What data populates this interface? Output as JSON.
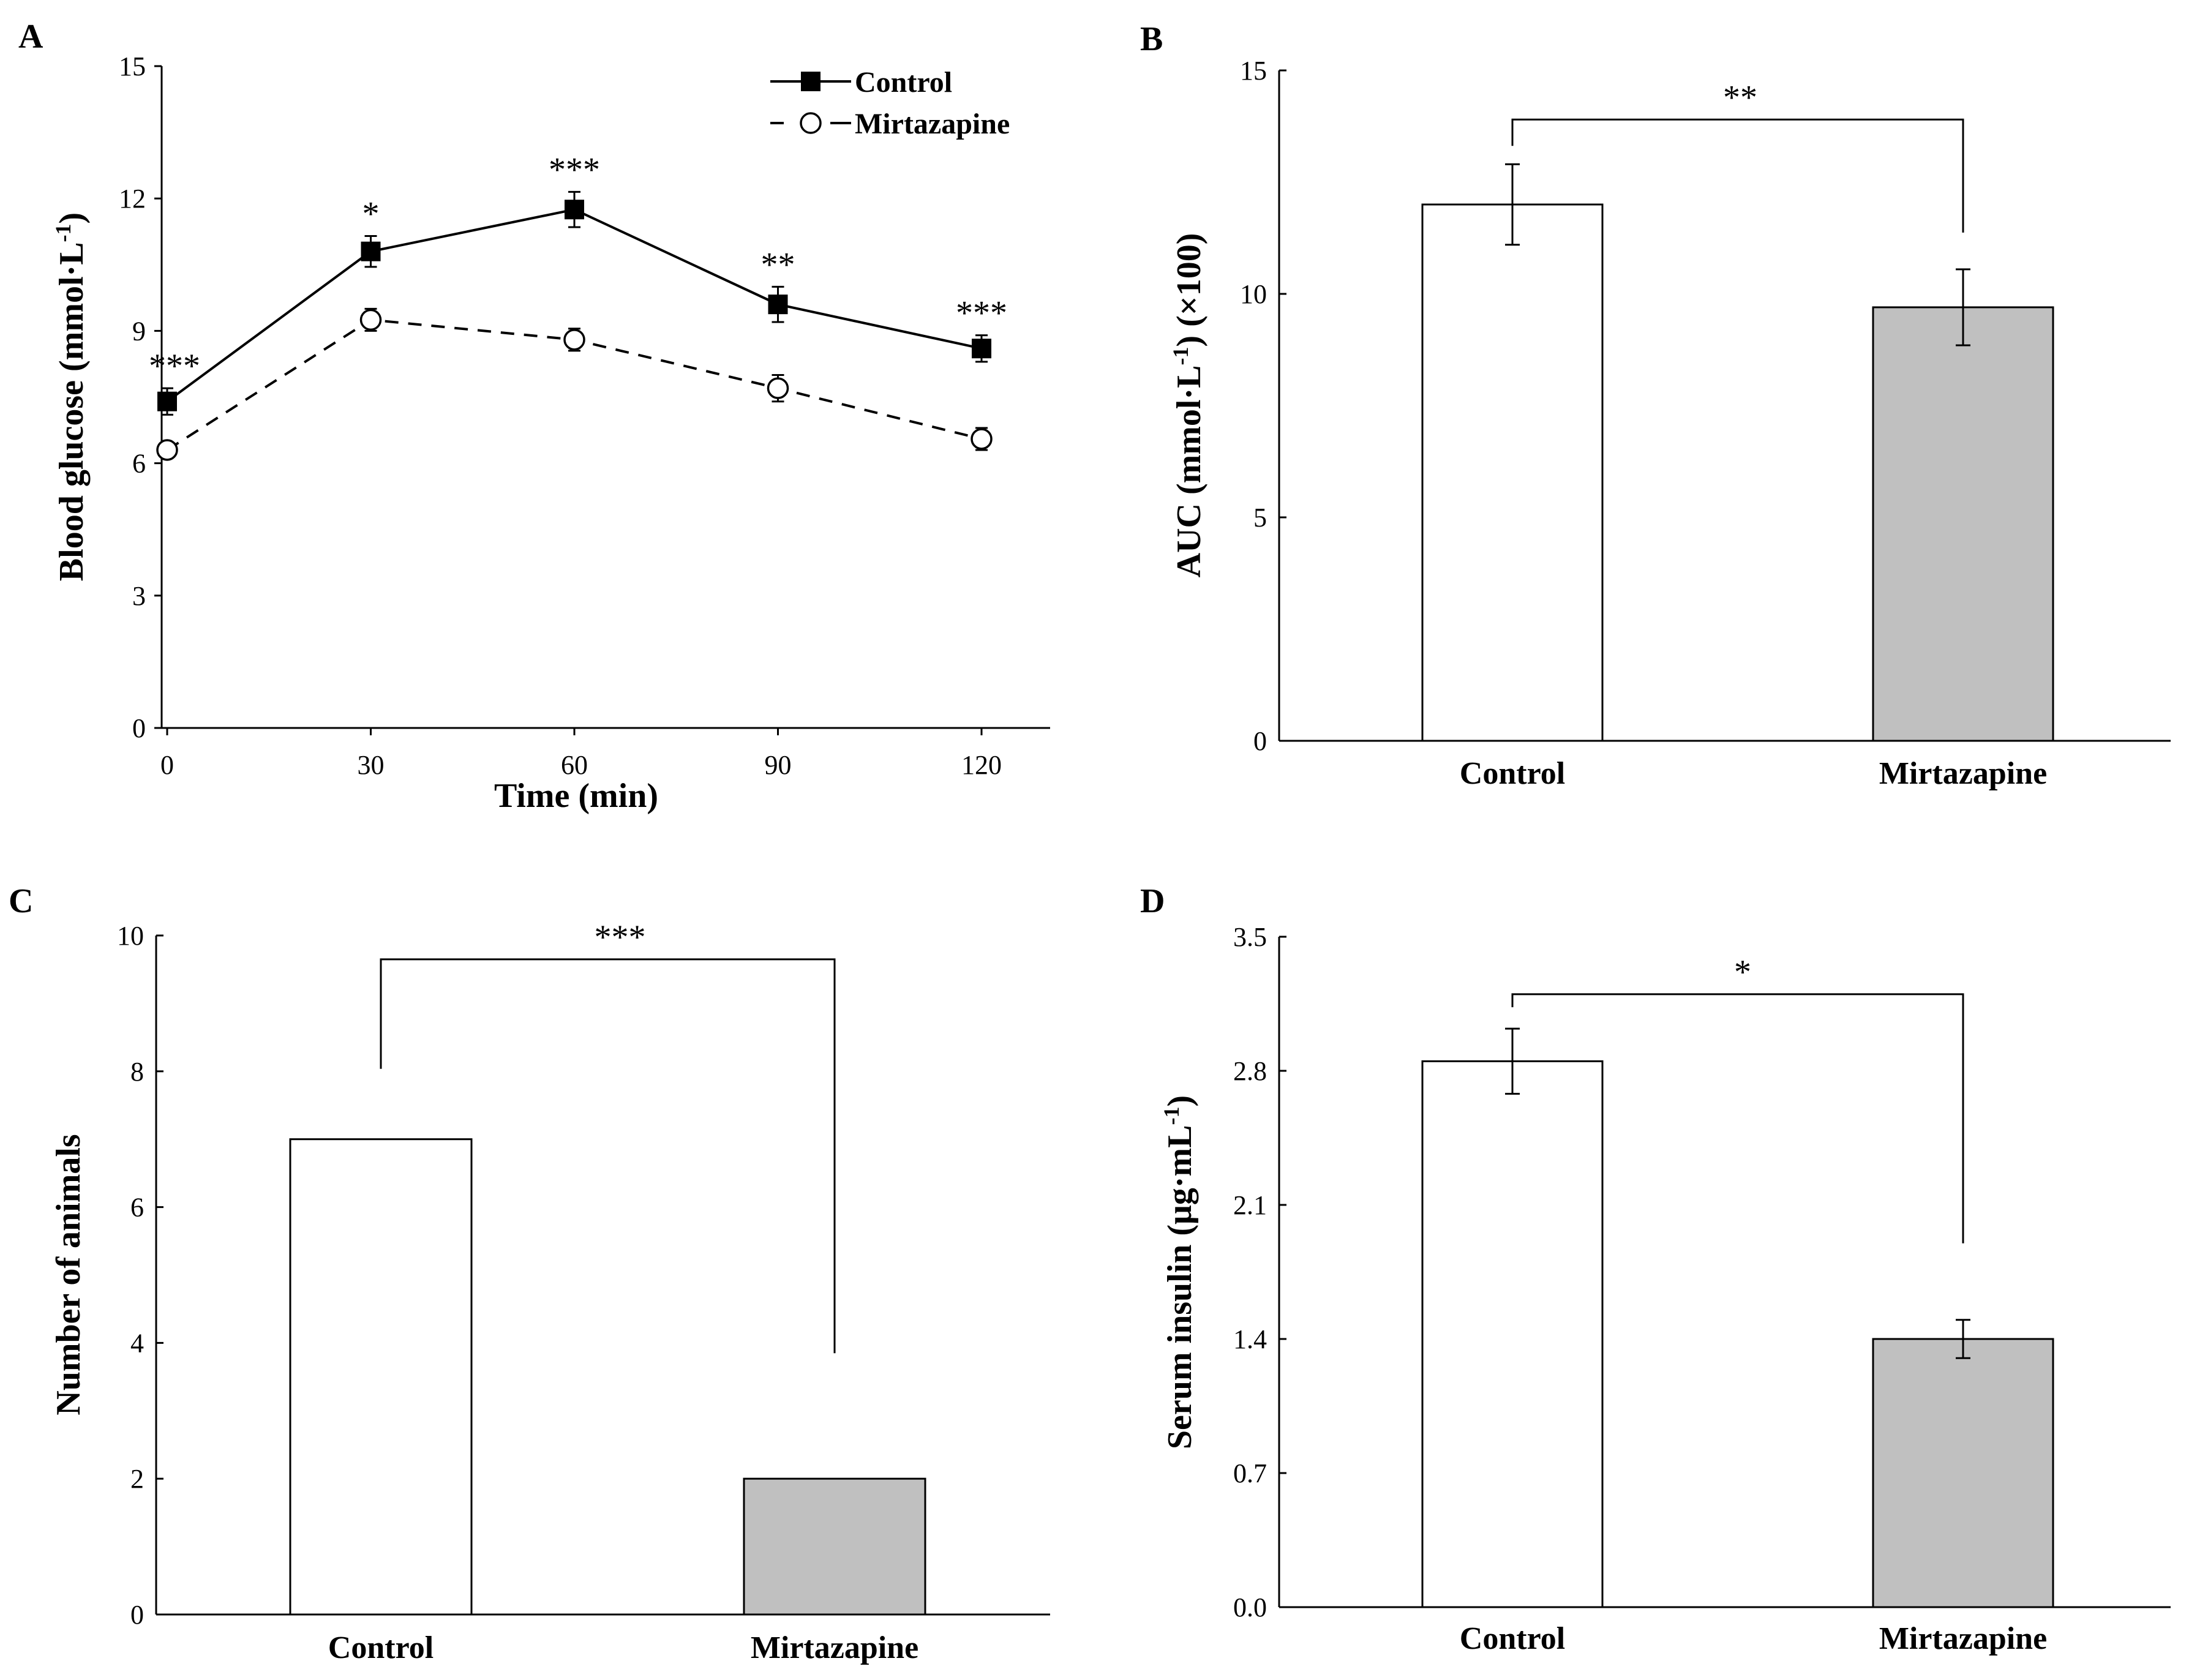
{
  "figure": {
    "bg": "#ffffff",
    "bar_fill_control": "#ffffff",
    "bar_fill_treatment": "#c0c0c0",
    "stroke": "#000000"
  },
  "chart_data": [
    {
      "panel": "A",
      "type": "line",
      "xlabel": "Time (min)",
      "ylabel_main": "Blood glucose (mmol·L",
      "ylabel_sup": "-1",
      "ylabel_close": ")",
      "x": [
        0,
        30,
        60,
        90,
        120
      ],
      "xticks": [
        "0",
        "30",
        "60",
        "90",
        "120"
      ],
      "yticks": [
        "0",
        "3",
        "6",
        "9",
        "12",
        "15"
      ],
      "xlim": [
        -1,
        130
      ],
      "ylim": [
        0,
        15
      ],
      "legend_position": "top-right",
      "series": [
        {
          "name": "Control",
          "marker": "filled-square",
          "line": "solid",
          "values": [
            7.4,
            10.8,
            11.75,
            9.6,
            8.6
          ],
          "errors": [
            0.3,
            0.35,
            0.4,
            0.4,
            0.3
          ]
        },
        {
          "name": "Mirtazapine",
          "marker": "open-circle",
          "line": "dashed",
          "values": [
            6.3,
            9.25,
            8.8,
            7.7,
            6.55
          ],
          "errors": [
            0.15,
            0.25,
            0.25,
            0.3,
            0.25
          ]
        }
      ],
      "annotations": [
        "***",
        "*",
        "***",
        "**",
        "***"
      ]
    },
    {
      "panel": "B",
      "type": "bar",
      "categories": [
        "Control",
        "Mirtazapine"
      ],
      "values": [
        12.0,
        9.7
      ],
      "errors": [
        0.9,
        0.85
      ],
      "ylabel_main": "AUC (mmol·L",
      "ylabel_sup": "-1",
      "ylabel_close": ") (×100)",
      "yticks": [
        "0",
        "5",
        "10",
        "15"
      ],
      "ylim": [
        0,
        15
      ],
      "significance": "**"
    },
    {
      "panel": "C",
      "type": "bar",
      "categories": [
        "Control",
        "Mirtazapine"
      ],
      "values": [
        7,
        2
      ],
      "ylabel": "Number of animals",
      "yticks": [
        "0",
        "2",
        "4",
        "6",
        "8",
        "10"
      ],
      "ylim": [
        0,
        10
      ],
      "significance": "***"
    },
    {
      "panel": "D",
      "type": "bar",
      "categories": [
        "Control",
        "Mirtazapine"
      ],
      "values": [
        2.85,
        1.4
      ],
      "errors": [
        0.17,
        0.1
      ],
      "ylabel_main": "Serum insulin (μg·mL",
      "ylabel_sup": "-1",
      "ylabel_close": ")",
      "yticks": [
        "0.0",
        "0.7",
        "1.4",
        "2.1",
        "2.8",
        "3.5"
      ],
      "ylim": [
        0,
        3.5
      ],
      "significance": "*"
    }
  ]
}
